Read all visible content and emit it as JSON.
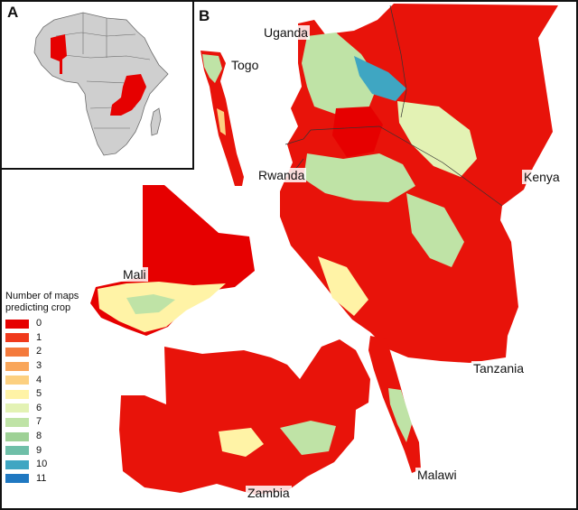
{
  "panels": {
    "a": {
      "letter": "A"
    },
    "b": {
      "letter": "B"
    }
  },
  "countries": {
    "uganda": "Uganda",
    "togo": "Togo",
    "rwanda": "Rwanda",
    "kenya": "Kenya",
    "mali": "Mali",
    "tanzania": "Tanzania",
    "malawi": "Malawi",
    "zambia": "Zambia"
  },
  "legend": {
    "title_line1": "Number of maps",
    "title_line2": "predicting crop",
    "items": [
      {
        "label": "0",
        "color": "#e60000"
      },
      {
        "label": "1",
        "color": "#f03a1c"
      },
      {
        "label": "2",
        "color": "#f47a3c"
      },
      {
        "label": "3",
        "color": "#f9a65a"
      },
      {
        "label": "4",
        "color": "#fcd080"
      },
      {
        "label": "5",
        "color": "#fff3a6"
      },
      {
        "label": "6",
        "color": "#e3f2b4"
      },
      {
        "label": "7",
        "color": "#bfe3a6"
      },
      {
        "label": "8",
        "color": "#9ed196"
      },
      {
        "label": "9",
        "color": "#6fbfa8"
      },
      {
        "label": "10",
        "color": "#3fa6c2"
      },
      {
        "label": "11",
        "color": "#1f78c1"
      }
    ]
  },
  "colors": {
    "africa_land": "#cfcfcf",
    "africa_border": "#6b6b6b",
    "study_area": "#e60000",
    "crop_red": "#e8130a",
    "crop_green": "#bfe3a6",
    "crop_blue": "#3fa6c2"
  }
}
